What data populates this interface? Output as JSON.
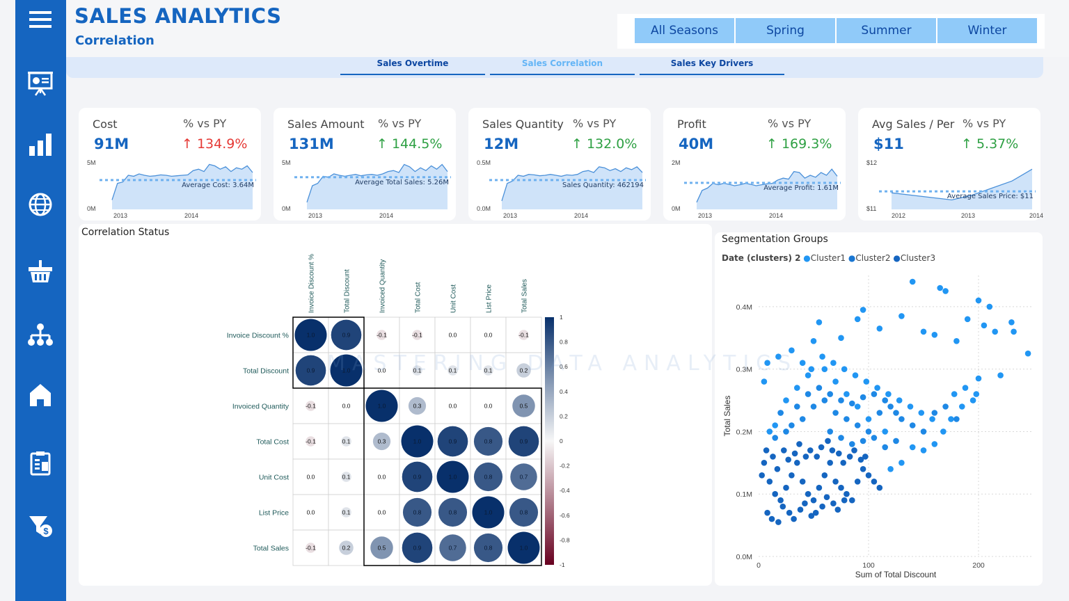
{
  "header": {
    "title": "SALES ANALYTICS",
    "subtitle": "Correlation"
  },
  "seasons": [
    "All Seasons",
    "Spring",
    "Summer",
    "Winter"
  ],
  "nav": {
    "tabs": [
      "Sales Overtime",
      "Sales Correlation",
      "Sales Key Drivers"
    ],
    "active": "Sales Correlation"
  },
  "sidebar": {
    "icons": [
      "menu-icon",
      "presentation-icon",
      "bar-chart-icon",
      "globe-icon",
      "basket-icon",
      "hierarchy-icon",
      "home-icon",
      "clipboard-icon",
      "funnel-dollar-icon"
    ]
  },
  "kpis": [
    {
      "name": "Cost",
      "pylabel": "% vs PY",
      "value": "91M",
      "delta": "↑ 134.9%",
      "direction": "up",
      "color": "#e53935",
      "ytop": "5M",
      "ybottom": "0M",
      "xticks": [
        "2013",
        "2014"
      ],
      "avg_label": "Average Cost: 3.64M"
    },
    {
      "name": "Sales Amount",
      "pylabel": "% vs PY",
      "value": "131M",
      "delta": "↑ 144.5%",
      "direction": "up",
      "color": "#2ea043",
      "ytop": "5M",
      "ybottom": "0M",
      "xticks": [
        "2013",
        "2014"
      ],
      "avg_label": "Average Total Sales: 5.26M"
    },
    {
      "name": "Sales Quantity",
      "pylabel": "% vs PY",
      "value": "12M",
      "delta": "↑ 132.0%",
      "direction": "up",
      "color": "#2ea043",
      "ytop": "0.5M",
      "ybottom": "0.0M",
      "xticks": [
        "2013",
        "2014"
      ],
      "avg_label": "Sales Quantity: 462194"
    },
    {
      "name": "Profit",
      "pylabel": "% vs PY",
      "value": "40M",
      "delta": "↑ 169.3%",
      "direction": "up",
      "color": "#2ea043",
      "ytop": "2M",
      "ybottom": "0M",
      "xticks": [
        "2013",
        "2014"
      ],
      "avg_label": "Average Profit: 1.61M"
    },
    {
      "name": "Avg Sales / Per",
      "pylabel": "% vs PY",
      "value": "$11",
      "delta": "↑ 5.37%",
      "direction": "up",
      "color": "#2ea043",
      "ytop": "$12",
      "ybottom": "$11",
      "xticks": [
        "2012",
        "2013",
        "2014"
      ],
      "avg_label": "Average Sales Price: $11"
    }
  ],
  "correlation": {
    "title": "Correlation Status",
    "variables": [
      "Invoice Discount %",
      "Total Discount",
      "Invoiced Quantity",
      "Total Cost",
      "Unit Cost",
      "List Price",
      "Total Sales"
    ],
    "matrix": [
      [
        1.0,
        0.9,
        -0.1,
        -0.1,
        0.0,
        0.0,
        -0.1
      ],
      [
        0.9,
        1.0,
        0.0,
        0.1,
        0.1,
        0.1,
        0.2
      ],
      [
        -0.1,
        0.0,
        1.0,
        0.3,
        0.0,
        0.0,
        0.5
      ],
      [
        -0.1,
        0.1,
        0.3,
        1.0,
        0.9,
        0.8,
        0.9
      ],
      [
        0.0,
        0.1,
        0.0,
        0.9,
        1.0,
        0.8,
        0.7
      ],
      [
        0.0,
        0.1,
        0.0,
        0.8,
        0.8,
        1.0,
        0.8
      ],
      [
        -0.1,
        0.2,
        0.5,
        0.9,
        0.7,
        0.8,
        1.0
      ]
    ],
    "colorbar_ticks": [
      "1",
      "0.8",
      "0.6",
      "0.4",
      "0.2",
      "0",
      "-0.2",
      "-0.4",
      "-0.6",
      "-0.8",
      "-1"
    ]
  },
  "watermark": "MASTERING DATA ANALYTICS",
  "segmentation": {
    "title": "Segmentation Groups",
    "legend_title": "Date (clusters) 2",
    "legend": [
      {
        "name": "Cluster1",
        "color": "#2196f3"
      },
      {
        "name": "Cluster2",
        "color": "#1976d2"
      },
      {
        "name": "Cluster3",
        "color": "#1565c0"
      }
    ]
  },
  "chart_data": {
    "type": "scatter",
    "title": "Segmentation Groups",
    "xlabel": "Sum of Total Discount",
    "ylabel": "Total Sales",
    "xlim": [
      0,
      250
    ],
    "ylim": [
      0,
      450000
    ],
    "xticks": [
      "0",
      "100",
      "200"
    ],
    "yticks": [
      "0.0M",
      "0.1M",
      "0.2M",
      "0.3M",
      "0.4M"
    ],
    "series": [
      {
        "name": "Cluster1",
        "points": [
          [
            90,
            380000
          ],
          [
            140,
            440000
          ],
          [
            165,
            430000
          ],
          [
            170,
            425000
          ],
          [
            200,
            410000
          ],
          [
            210,
            400000
          ],
          [
            55,
            375000
          ],
          [
            50,
            345000
          ],
          [
            75,
            350000
          ],
          [
            95,
            395000
          ],
          [
            110,
            365000
          ],
          [
            130,
            385000
          ],
          [
            150,
            360000
          ],
          [
            160,
            355000
          ],
          [
            180,
            345000
          ],
          [
            190,
            380000
          ],
          [
            205,
            370000
          ],
          [
            215,
            360000
          ],
          [
            230,
            375000
          ],
          [
            232,
            360000
          ],
          [
            245,
            325000
          ],
          [
            220,
            290000
          ],
          [
            200,
            285000
          ],
          [
            195,
            250000
          ],
          [
            185,
            240000
          ],
          [
            175,
            220000
          ],
          [
            168,
            200000
          ],
          [
            160,
            180000
          ],
          [
            150,
            170000
          ],
          [
            140,
            175000
          ],
          [
            120,
            140000
          ],
          [
            130,
            150000
          ],
          [
            115,
            200000
          ],
          [
            100,
            220000
          ],
          [
            90,
            240000
          ],
          [
            80,
            260000
          ],
          [
            70,
            280000
          ],
          [
            60,
            300000
          ],
          [
            45,
            290000
          ],
          [
            35,
            270000
          ],
          [
            25,
            250000
          ],
          [
            20,
            230000
          ],
          [
            15,
            210000
          ],
          [
            10,
            200000
          ],
          [
            5,
            280000
          ],
          [
            8,
            310000
          ],
          [
            18,
            320000
          ],
          [
            30,
            330000
          ],
          [
            40,
            310000
          ],
          [
            48,
            300000
          ],
          [
            58,
            320000
          ],
          [
            68,
            310000
          ],
          [
            78,
            300000
          ],
          [
            88,
            290000
          ],
          [
            98,
            280000
          ],
          [
            108,
            270000
          ],
          [
            118,
            260000
          ],
          [
            128,
            250000
          ],
          [
            138,
            240000
          ],
          [
            148,
            230000
          ],
          [
            158,
            220000
          ],
          [
            178,
            260000
          ],
          [
            188,
            270000
          ],
          [
            198,
            260000
          ]
        ]
      },
      {
        "name": "Cluster2",
        "points": [
          [
            20,
            230000
          ],
          [
            30,
            210000
          ],
          [
            40,
            220000
          ],
          [
            50,
            240000
          ],
          [
            60,
            250000
          ],
          [
            70,
            230000
          ],
          [
            80,
            220000
          ],
          [
            90,
            210000
          ],
          [
            100,
            200000
          ],
          [
            110,
            230000
          ],
          [
            120,
            240000
          ],
          [
            130,
            220000
          ],
          [
            140,
            210000
          ],
          [
            150,
            200000
          ],
          [
            160,
            230000
          ],
          [
            170,
            240000
          ],
          [
            180,
            220000
          ],
          [
            45,
            260000
          ],
          [
            55,
            270000
          ],
          [
            65,
            260000
          ],
          [
            75,
            250000
          ],
          [
            85,
            245000
          ],
          [
            95,
            255000
          ],
          [
            105,
            260000
          ],
          [
            115,
            250000
          ],
          [
            125,
            230000
          ],
          [
            35,
            240000
          ],
          [
            25,
            200000
          ],
          [
            15,
            190000
          ],
          [
            65,
            200000
          ],
          [
            75,
            190000
          ],
          [
            85,
            180000
          ],
          [
            95,
            185000
          ],
          [
            105,
            190000
          ],
          [
            115,
            175000
          ],
          [
            125,
            185000
          ]
        ]
      },
      {
        "name": "Cluster3",
        "points": [
          [
            5,
            150000
          ],
          [
            10,
            120000
          ],
          [
            15,
            100000
          ],
          [
            20,
            90000
          ],
          [
            25,
            110000
          ],
          [
            30,
            130000
          ],
          [
            35,
            150000
          ],
          [
            40,
            120000
          ],
          [
            45,
            100000
          ],
          [
            50,
            90000
          ],
          [
            55,
            110000
          ],
          [
            60,
            130000
          ],
          [
            65,
            150000
          ],
          [
            70,
            120000
          ],
          [
            75,
            110000
          ],
          [
            80,
            100000
          ],
          [
            85,
            90000
          ],
          [
            90,
            120000
          ],
          [
            95,
            140000
          ],
          [
            100,
            130000
          ],
          [
            105,
            120000
          ],
          [
            110,
            110000
          ],
          [
            8,
            70000
          ],
          [
            12,
            60000
          ],
          [
            18,
            55000
          ],
          [
            22,
            80000
          ],
          [
            28,
            70000
          ],
          [
            32,
            60000
          ],
          [
            38,
            75000
          ],
          [
            42,
            85000
          ],
          [
            48,
            65000
          ],
          [
            52,
            70000
          ],
          [
            58,
            80000
          ],
          [
            62,
            95000
          ],
          [
            68,
            85000
          ],
          [
            72,
            75000
          ],
          [
            78,
            90000
          ],
          [
            3,
            130000
          ],
          [
            7,
            170000
          ],
          [
            13,
            160000
          ],
          [
            17,
            140000
          ],
          [
            23,
            170000
          ],
          [
            27,
            155000
          ],
          [
            33,
            165000
          ],
          [
            37,
            180000
          ],
          [
            43,
            160000
          ],
          [
            47,
            170000
          ],
          [
            53,
            160000
          ],
          [
            57,
            175000
          ],
          [
            63,
            185000
          ],
          [
            67,
            170000
          ],
          [
            73,
            165000
          ],
          [
            77,
            150000
          ],
          [
            83,
            160000
          ],
          [
            87,
            170000
          ],
          [
            93,
            155000
          ],
          [
            97,
            160000
          ]
        ]
      }
    ]
  }
}
